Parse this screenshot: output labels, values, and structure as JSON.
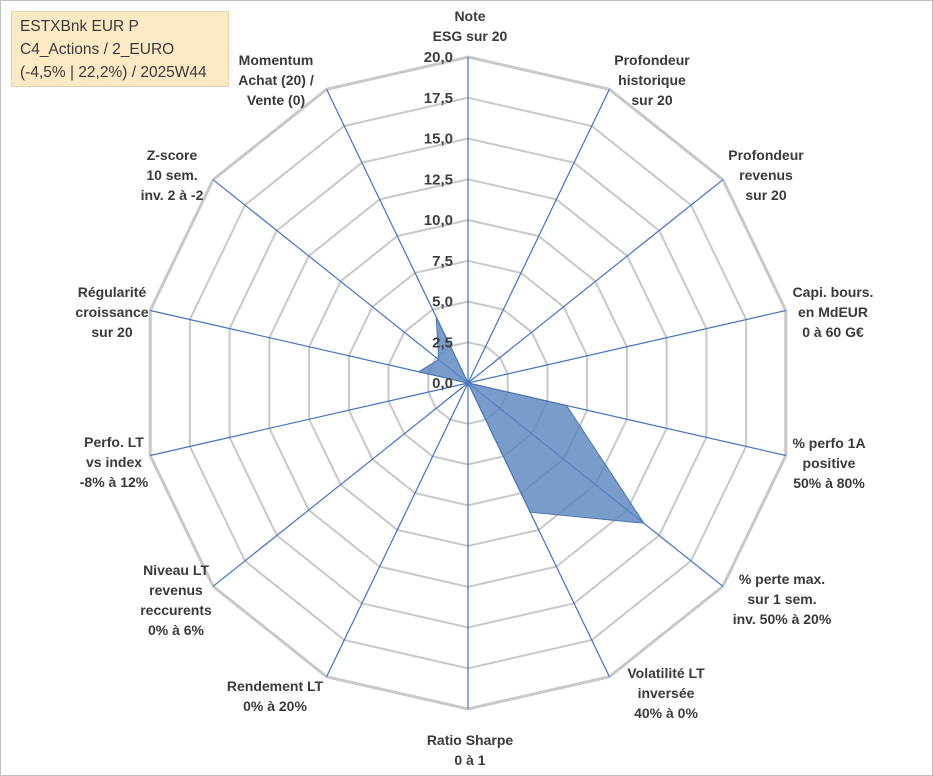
{
  "legend": {
    "line1": "ESTXBnk EUR P",
    "line2": "C4_Actions / 2_EURO",
    "line3": "(-4,5% | 22,2%) / 2025W44"
  },
  "chart_data": {
    "type": "radar",
    "title": "",
    "rmax": 20,
    "tick_step": 2.5,
    "gridlines": true,
    "grid_rings": 8,
    "tick_labels": [
      "0,0",
      "2,5",
      "5,0",
      "7,5",
      "10,0",
      "12,5",
      "15,0",
      "17,5",
      "20,0"
    ],
    "axes": [
      [
        "Note",
        "ESG sur 20"
      ],
      [
        "Profondeur",
        "historique",
        "sur 20"
      ],
      [
        "Profondeur",
        "revenus",
        "sur 20"
      ],
      [
        "Capi. bours.",
        "en MdEUR",
        "0 à 60 G€"
      ],
      [
        "% perfo 1A",
        "positive",
        "50% à 80%"
      ],
      [
        "% perte max.",
        "sur 1 sem.",
        "inv. 50% à 20%"
      ],
      [
        "Volatilité LT",
        "inversée",
        "40% à 0%"
      ],
      [
        "Ratio Sharpe",
        "0 à 1"
      ],
      [
        "Rendement LT",
        "0% à 20%"
      ],
      [
        "Niveau LT",
        "revenus",
        "reccurents",
        "0% à 6%"
      ],
      [
        "Perfo. LT",
        "vs index",
        "-8% à 12%"
      ],
      [
        "Régularité",
        "croissance",
        "sur 20"
      ],
      [
        "Z-score",
        "10 sem.",
        "inv. 2 à -2"
      ],
      [
        "Momentum",
        "Achat (20) /",
        "Vente (0)"
      ]
    ],
    "series": [
      {
        "values": [
          0,
          0,
          0,
          0,
          6.2,
          13.8,
          8.8,
          0,
          0,
          0,
          0,
          3.1,
          2.3,
          4.5
        ]
      }
    ],
    "colors": {
      "area": "#5b86bf",
      "area_opacity": 0.82,
      "spoke": "#4472c4",
      "grid": "#c8c8c8",
      "tick_text": "#3f3f3f",
      "label_text": "#3a3a3a"
    }
  }
}
